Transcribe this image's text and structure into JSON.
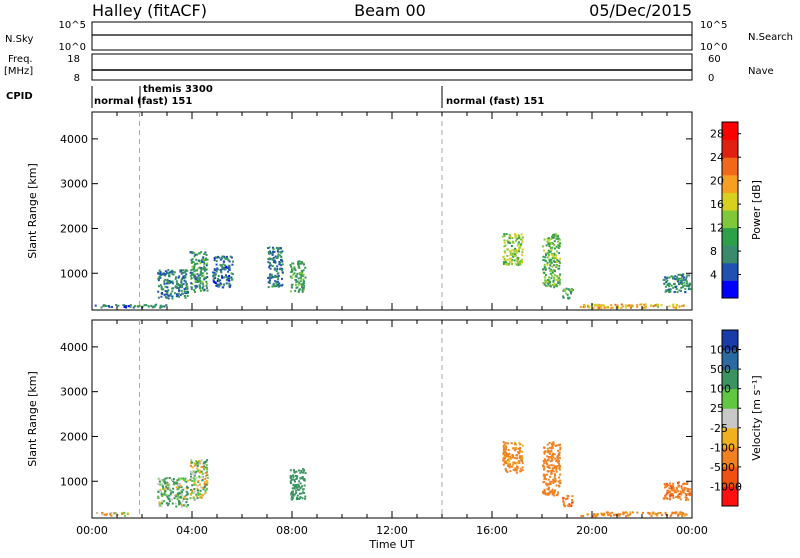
{
  "header": {
    "title_left": "Halley (fitACF)",
    "title_center": "Beam 00",
    "title_right": "05/Dec/2015"
  },
  "status": {
    "nsky_label": "N.Sky",
    "nsearch_label": "N.Search",
    "freq_label": "Freq.",
    "freq_unit": "[MHz]",
    "nave_label": "Nave",
    "cpid_label": "CPID",
    "nsky_ticks": [
      "10^5",
      "10^0"
    ],
    "nsearch_ticks": [
      "10^5",
      "10^0"
    ],
    "freq_ticks": [
      "18",
      "8"
    ],
    "nave_ticks": [
      "60",
      "0"
    ],
    "cpid_segments": [
      {
        "label": "normal (fast) 151",
        "start_hour": 0.0
      },
      {
        "label": "themis 3300",
        "start_hour": 1.9
      },
      {
        "label": "normal (fast) 151",
        "start_hour": 14.0
      }
    ]
  },
  "chart_data": [
    {
      "type": "heatmap",
      "title": "",
      "xlabel": "",
      "ylabel": "Slant Range [km]",
      "xlim": [
        0,
        24
      ],
      "ylim": [
        180,
        4600
      ],
      "yticks": [
        1000,
        2000,
        3000,
        4000
      ],
      "colorbar": {
        "label": "Power [dB]",
        "ticks": [
          "4",
          "8",
          "12",
          "16",
          "20",
          "24",
          "28"
        ],
        "range": [
          0,
          30
        ],
        "colors": [
          "#0000ff",
          "#2050b0",
          "#3a8a6e",
          "#2fa04a",
          "#7ec83a",
          "#d8d020",
          "#f5a020",
          "#f06818",
          "#e02010",
          "#ff0000"
        ]
      },
      "clusters": [
        {
          "x": [
            0.1,
            1.5
          ],
          "y": [
            250,
            320
          ],
          "value": 6
        },
        {
          "x": [
            1.5,
            3.0
          ],
          "y": [
            250,
            330
          ],
          "value": 8
        },
        {
          "x": [
            2.6,
            3.8
          ],
          "y": [
            450,
            1100
          ],
          "value": 7
        },
        {
          "x": [
            3.9,
            4.6
          ],
          "y": [
            600,
            1500
          ],
          "value": 9
        },
        {
          "x": [
            4.8,
            5.6
          ],
          "y": [
            700,
            1400
          ],
          "value": 6
        },
        {
          "x": [
            7.0,
            7.6
          ],
          "y": [
            700,
            1600
          ],
          "value": 7
        },
        {
          "x": [
            7.9,
            8.5
          ],
          "y": [
            600,
            1300
          ],
          "value": 10
        },
        {
          "x": [
            16.4,
            17.2
          ],
          "y": [
            1200,
            1900
          ],
          "value": 14
        },
        {
          "x": [
            18.0,
            18.7
          ],
          "y": [
            700,
            1900
          ],
          "value": 12
        },
        {
          "x": [
            18.8,
            19.2
          ],
          "y": [
            450,
            700
          ],
          "value": 10
        },
        {
          "x": [
            19.5,
            23.8
          ],
          "y": [
            240,
            330
          ],
          "value": 18
        },
        {
          "x": [
            22.8,
            23.9
          ],
          "y": [
            600,
            1000
          ],
          "value": 8
        }
      ]
    },
    {
      "type": "heatmap",
      "title": "",
      "xlabel": "Time UT",
      "ylabel": "Slant Range [km]",
      "xlim": [
        0,
        24
      ],
      "ylim": [
        180,
        4600
      ],
      "yticks": [
        1000,
        2000,
        3000,
        4000
      ],
      "xticks": [
        "00:00",
        "04:00",
        "08:00",
        "12:00",
        "16:00",
        "20:00",
        "00:00"
      ],
      "colorbar": {
        "label": "Velocity [m s⁻¹]",
        "ticks": [
          "1000",
          "500",
          "100",
          "25",
          "-25",
          "-100",
          "-500",
          "-1000"
        ],
        "colors": [
          "#1a3ca8",
          "#2a6aa0",
          "#3a9460",
          "#60c840",
          "#c8c8c8",
          "#f0b020",
          "#f08020",
          "#f05010",
          "#ff1010"
        ]
      },
      "clusters": [
        {
          "x": [
            0.1,
            1.5
          ],
          "y": [
            250,
            320
          ],
          "value": -100
        },
        {
          "x": [
            2.6,
            3.8
          ],
          "y": [
            450,
            1100
          ],
          "value": 100
        },
        {
          "x": [
            3.9,
            4.6
          ],
          "y": [
            600,
            1500
          ],
          "value": 25
        },
        {
          "x": [
            7.9,
            8.5
          ],
          "y": [
            600,
            1300
          ],
          "value": 300
        },
        {
          "x": [
            16.4,
            17.2
          ],
          "y": [
            1200,
            1900
          ],
          "value": -200
        },
        {
          "x": [
            18.0,
            18.7
          ],
          "y": [
            700,
            1900
          ],
          "value": -300
        },
        {
          "x": [
            18.8,
            19.2
          ],
          "y": [
            450,
            700
          ],
          "value": -400
        },
        {
          "x": [
            19.5,
            23.8
          ],
          "y": [
            240,
            330
          ],
          "value": -200
        },
        {
          "x": [
            22.8,
            23.9
          ],
          "y": [
            600,
            1000
          ],
          "value": -400
        }
      ]
    }
  ]
}
